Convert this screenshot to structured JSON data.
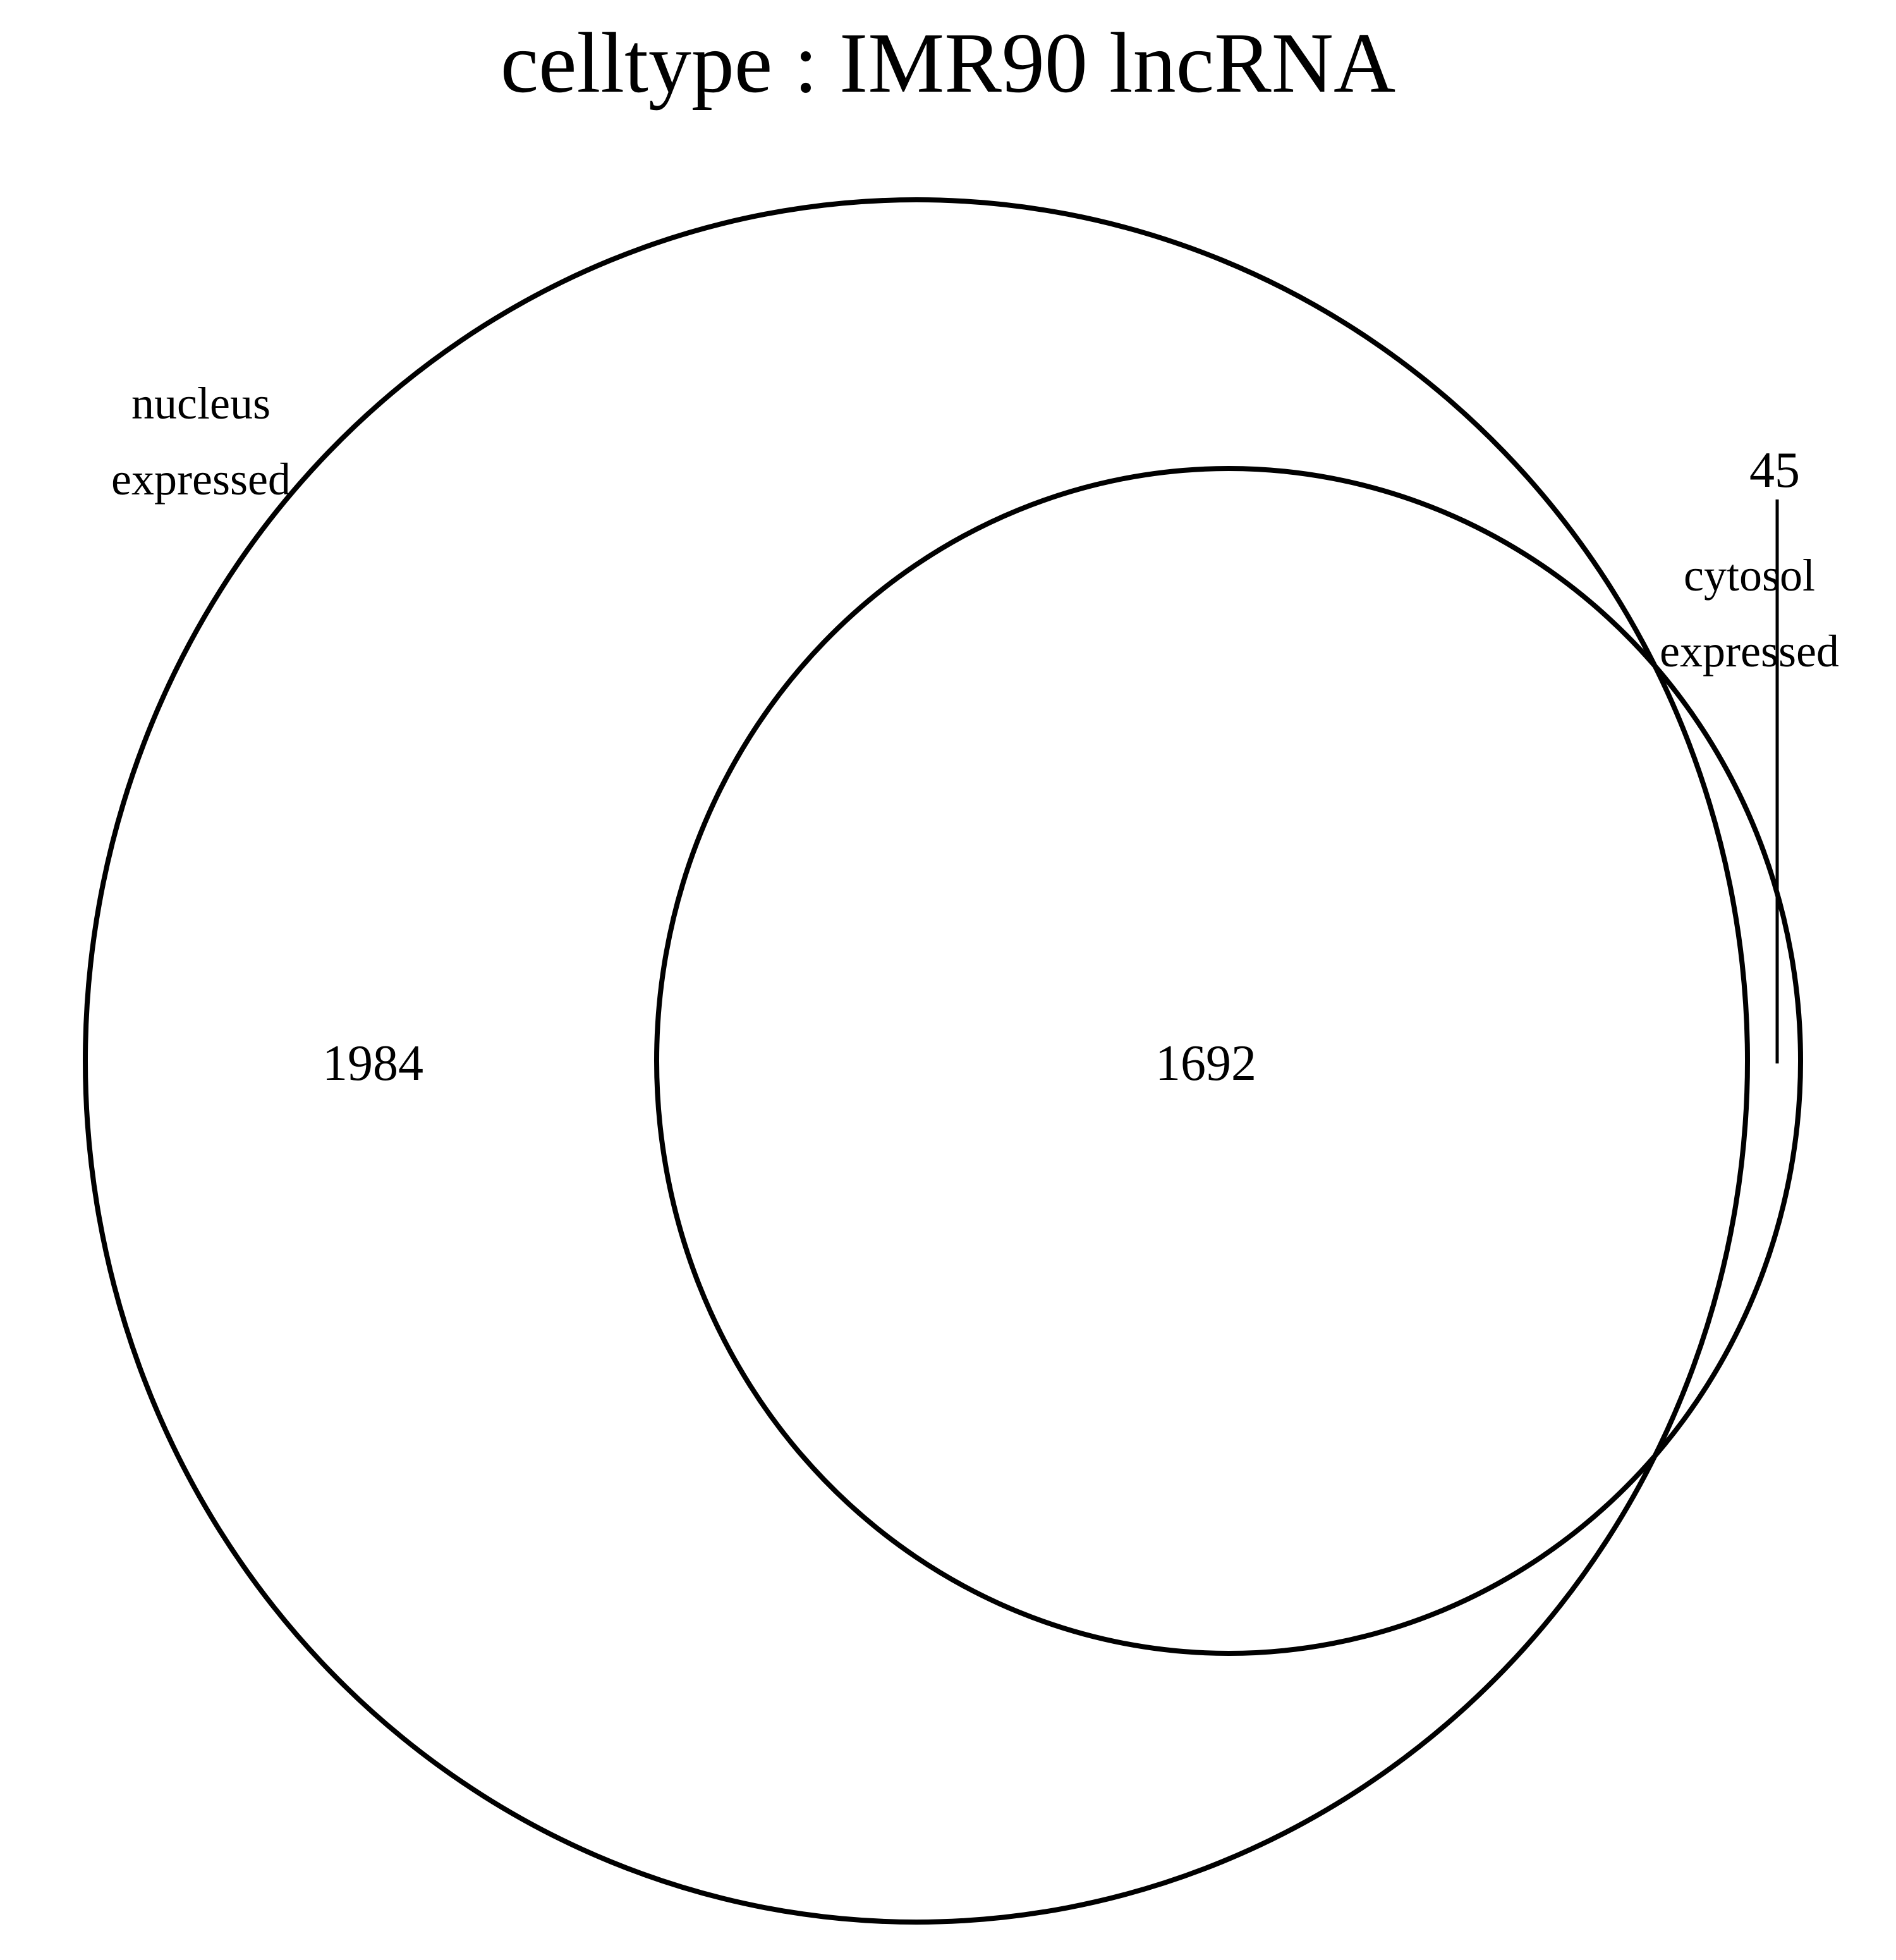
{
  "title": "celltype :  IMR90  lncRNA",
  "sets": [
    {
      "name_line1": "nucleus",
      "name_line2": "expressed"
    },
    {
      "name_line1": "cytosol",
      "name_line2": "expressed"
    }
  ],
  "counts": {
    "nucleus_only": "1984",
    "both": "1692",
    "cytosol_only": "45"
  },
  "colors": {
    "stroke": "#000000",
    "background": "#ffffff"
  }
}
